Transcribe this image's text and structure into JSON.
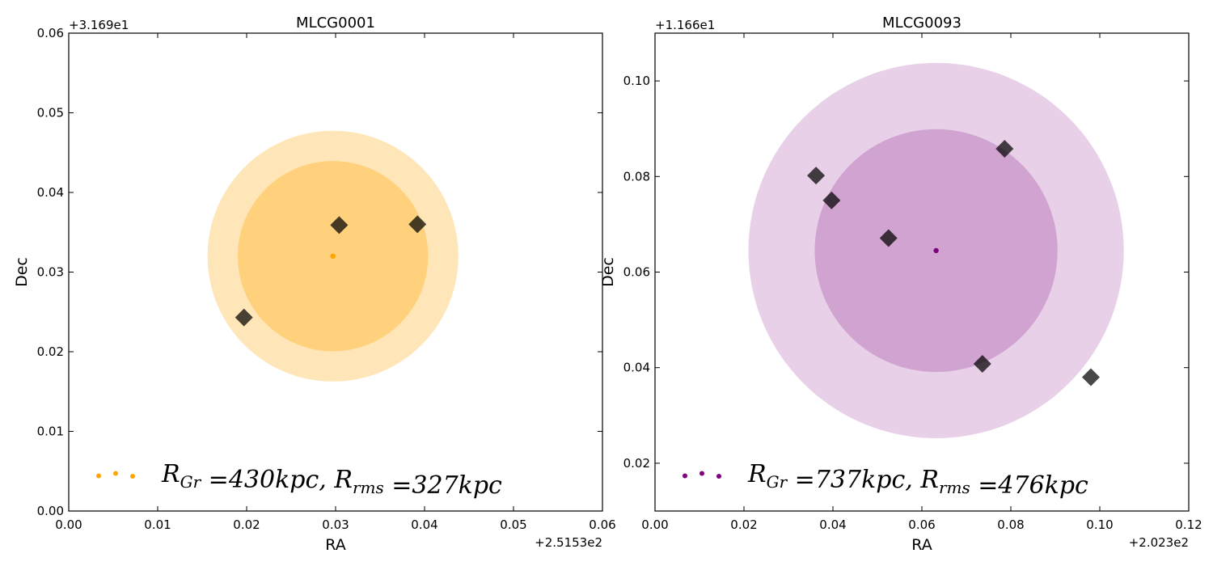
{
  "chart_data": [
    {
      "type": "scatter",
      "title": "MLCG0001",
      "xlabel": "RA",
      "ylabel": "Dec",
      "x_offset_label": "+2.5153e2",
      "y_offset_label": "+3.169e1",
      "xlim": [
        0.0,
        0.06
      ],
      "ylim": [
        0.0,
        0.06
      ],
      "xticks": [
        "0.00",
        "0.01",
        "0.02",
        "0.03",
        "0.04",
        "0.05",
        "0.06"
      ],
      "yticks": [
        "0.00",
        "0.01",
        "0.02",
        "0.03",
        "0.04",
        "0.05",
        "0.06"
      ],
      "accent_color": "#ffa500",
      "center": {
        "x": 0.0297,
        "y": 0.032
      },
      "circles": [
        {
          "name": "R_Gr",
          "radius": 0.0141,
          "color": "#ffa500",
          "alpha": 0.28
        },
        {
          "name": "R_rms",
          "radius": 0.0107,
          "color": "#ffa500",
          "alpha": 0.32
        }
      ],
      "members": [
        {
          "x": 0.0197,
          "y": 0.0243
        },
        {
          "x": 0.0304,
          "y": 0.0359
        },
        {
          "x": 0.0392,
          "y": 0.036
        }
      ],
      "legend": {
        "placement": "lower-left",
        "text_parts": [
          {
            "t": "R",
            "sub": "Gr"
          },
          {
            "t": " =430",
            "s": "kpc"
          },
          {
            "t": ",  "
          },
          {
            "t": "R",
            "sub": "rms"
          },
          {
            "t": " =327",
            "s": "kpc"
          }
        ]
      }
    },
    {
      "type": "scatter",
      "title": "MLCG0093",
      "xlabel": "RA",
      "ylabel": "Dec",
      "x_offset_label": "+2.023e2",
      "y_offset_label": "+1.166e1",
      "xlim": [
        0.0,
        0.12
      ],
      "ylim": [
        0.01,
        0.11
      ],
      "xticks": [
        "0.00",
        "0.02",
        "0.04",
        "0.06",
        "0.08",
        "0.10",
        "0.12"
      ],
      "yticks": [
        "0.02",
        "0.04",
        "0.06",
        "0.08",
        "0.10"
      ],
      "accent_color": "#800080",
      "center": {
        "x": 0.0632,
        "y": 0.0645
      },
      "circles": [
        {
          "name": "R_Gr",
          "radius": 0.0422,
          "color": "#800080",
          "alpha": 0.18
        },
        {
          "name": "R_rms",
          "radius": 0.0273,
          "color": "#800080",
          "alpha": 0.22
        }
      ],
      "members": [
        {
          "x": 0.0362,
          "y": 0.0802
        },
        {
          "x": 0.0397,
          "y": 0.075
        },
        {
          "x": 0.0525,
          "y": 0.0671
        },
        {
          "x": 0.0786,
          "y": 0.0858
        },
        {
          "x": 0.0736,
          "y": 0.0408
        },
        {
          "x": 0.098,
          "y": 0.038
        }
      ],
      "legend": {
        "placement": "lower-left",
        "text_parts": [
          {
            "t": "R",
            "sub": "Gr"
          },
          {
            "t": " =737",
            "s": "kpc"
          },
          {
            "t": ",  "
          },
          {
            "t": "R",
            "sub": "rms"
          },
          {
            "t": " =476",
            "s": "kpc"
          }
        ]
      }
    }
  ]
}
